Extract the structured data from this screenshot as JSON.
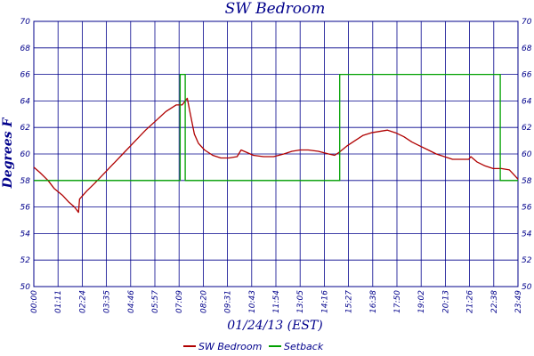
{
  "chart_data": {
    "type": "line",
    "title": "SW Bedroom",
    "xlabel": "01/24/13 (EST)",
    "ylabel": "Degrees F",
    "ylim": [
      50,
      70
    ],
    "y_ticks": [
      50,
      52,
      54,
      56,
      58,
      60,
      62,
      64,
      66,
      68,
      70
    ],
    "x_tick_labels": [
      "00:00",
      "01:11",
      "02:24",
      "03:35",
      "04:46",
      "05:57",
      "07:09",
      "08:20",
      "09:31",
      "10:43",
      "11:54",
      "13:05",
      "14:16",
      "15:27",
      "16:38",
      "17:50",
      "19:02",
      "20:13",
      "21:26",
      "22:38",
      "23:49"
    ],
    "x_unit": "hours",
    "xlim": [
      0,
      23.82
    ],
    "grid": true,
    "legend_position": "bottom",
    "series": [
      {
        "name": "SW Bedroom",
        "color": "#b00000",
        "points": [
          [
            0,
            59.0
          ],
          [
            0.3,
            58.6
          ],
          [
            0.7,
            58.0
          ],
          [
            1.0,
            57.4
          ],
          [
            1.4,
            56.9
          ],
          [
            1.7,
            56.4
          ],
          [
            2.0,
            56.0
          ],
          [
            2.2,
            55.6
          ],
          [
            2.25,
            56.6
          ],
          [
            2.6,
            57.2
          ],
          [
            3.0,
            57.8
          ],
          [
            3.5,
            58.6
          ],
          [
            4.0,
            59.4
          ],
          [
            4.5,
            60.2
          ],
          [
            5.0,
            61.0
          ],
          [
            5.5,
            61.8
          ],
          [
            6.0,
            62.5
          ],
          [
            6.5,
            63.2
          ],
          [
            7.0,
            63.7
          ],
          [
            7.3,
            63.7
          ],
          [
            7.55,
            64.2
          ],
          [
            7.7,
            63.0
          ],
          [
            7.9,
            61.5
          ],
          [
            8.1,
            60.8
          ],
          [
            8.4,
            60.3
          ],
          [
            8.8,
            59.9
          ],
          [
            9.2,
            59.7
          ],
          [
            9.6,
            59.7
          ],
          [
            10.0,
            59.8
          ],
          [
            10.2,
            60.3
          ],
          [
            10.5,
            60.1
          ],
          [
            10.8,
            59.9
          ],
          [
            11.3,
            59.8
          ],
          [
            11.8,
            59.8
          ],
          [
            12.3,
            60.0
          ],
          [
            12.7,
            60.2
          ],
          [
            13.1,
            60.3
          ],
          [
            13.5,
            60.3
          ],
          [
            14.0,
            60.2
          ],
          [
            14.5,
            60.0
          ],
          [
            14.8,
            59.9
          ],
          [
            15.0,
            60.1
          ],
          [
            15.4,
            60.6
          ],
          [
            15.8,
            61.0
          ],
          [
            16.2,
            61.4
          ],
          [
            16.6,
            61.6
          ],
          [
            17.0,
            61.7
          ],
          [
            17.4,
            61.8
          ],
          [
            17.8,
            61.6
          ],
          [
            18.2,
            61.3
          ],
          [
            18.6,
            60.9
          ],
          [
            19.0,
            60.6
          ],
          [
            19.4,
            60.3
          ],
          [
            19.8,
            60.0
          ],
          [
            20.2,
            59.8
          ],
          [
            20.6,
            59.6
          ],
          [
            21.0,
            59.6
          ],
          [
            21.4,
            59.6
          ],
          [
            21.5,
            59.8
          ],
          [
            21.8,
            59.4
          ],
          [
            22.2,
            59.1
          ],
          [
            22.6,
            58.9
          ],
          [
            23.0,
            58.9
          ],
          [
            23.4,
            58.8
          ],
          [
            23.7,
            58.3
          ],
          [
            23.82,
            58.1
          ]
        ]
      },
      {
        "name": "Setback",
        "color": "#00a000",
        "points": [
          [
            0,
            58
          ],
          [
            7.2,
            58
          ],
          [
            7.2,
            66
          ],
          [
            7.45,
            66
          ],
          [
            7.45,
            58
          ],
          [
            15.05,
            58
          ],
          [
            15.05,
            66
          ],
          [
            22.95,
            66
          ],
          [
            22.95,
            58
          ],
          [
            23.82,
            58
          ]
        ]
      }
    ]
  }
}
